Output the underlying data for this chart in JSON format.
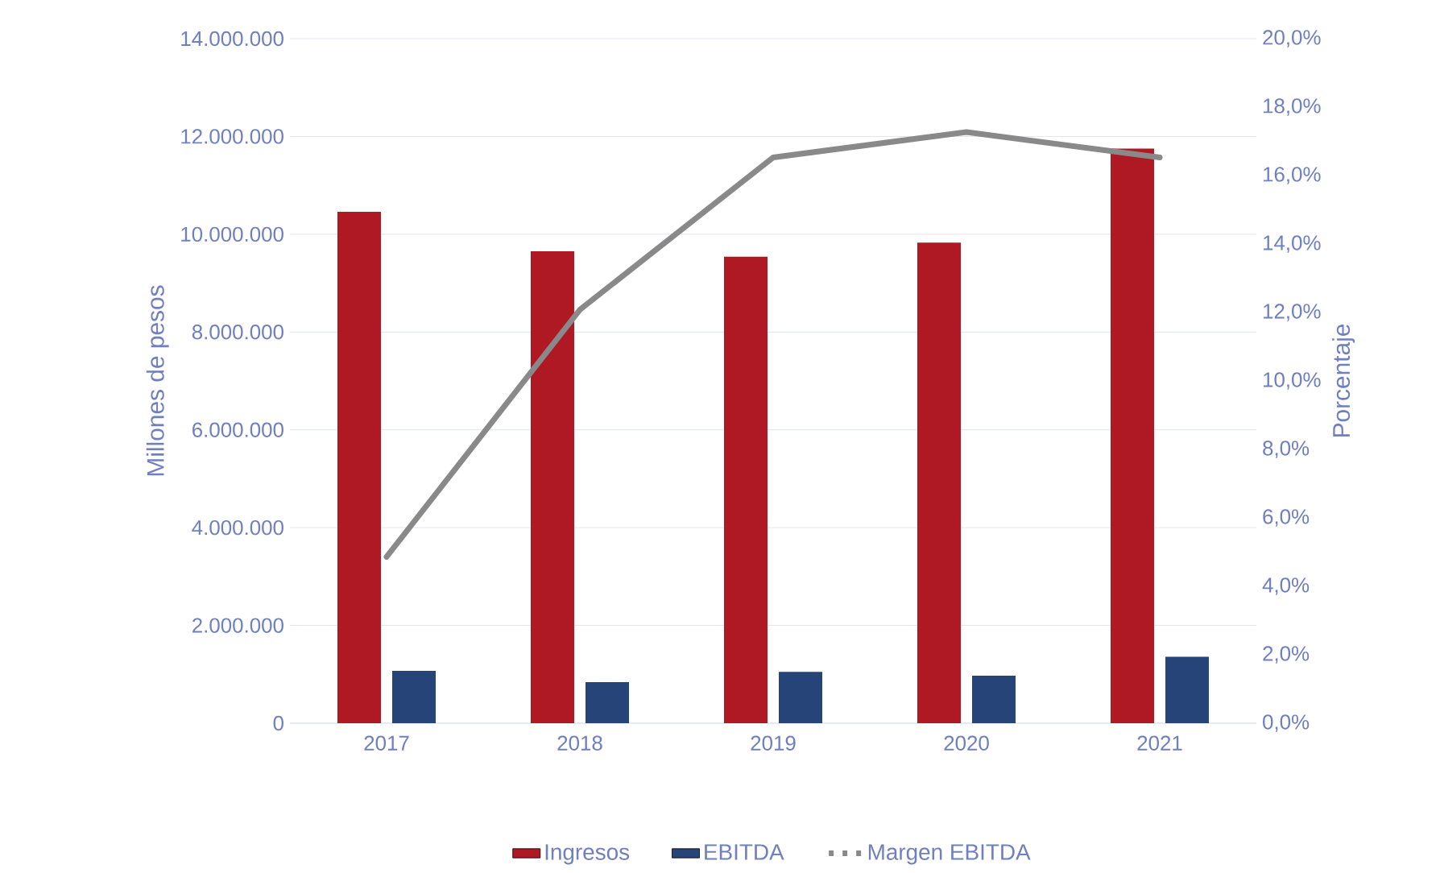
{
  "chart_data": {
    "type": "bar",
    "categories": [
      "2017",
      "2018",
      "2019",
      "2020",
      "2021"
    ],
    "series": [
      {
        "name": "Ingresos",
        "color": "#ae1923",
        "values": [
          10460000,
          9650000,
          9540000,
          9830000,
          11750000
        ]
      },
      {
        "name": "EBITDA",
        "color": "#264478",
        "values": [
          1070000,
          840000,
          1050000,
          970000,
          1360000
        ]
      },
      {
        "name": "Margen EBITDA",
        "color": "#898989",
        "type": "line",
        "axis": "y2",
        "values": [
          4.86,
          12.08,
          16.53,
          17.27,
          16.53
        ]
      }
    ],
    "ylabel": "Millones de pesos",
    "y2label": "Porcentaje",
    "ylim": [
      0,
      14000000
    ],
    "yticks": [
      {
        "value": 0,
        "label": "0"
      },
      {
        "value": 2000000,
        "label": "2.000.000"
      },
      {
        "value": 4000000,
        "label": "4.000.000"
      },
      {
        "value": 6000000,
        "label": "6.000.000"
      },
      {
        "value": 8000000,
        "label": "8.000.000"
      },
      {
        "value": 10000000,
        "label": "10.000.000"
      },
      {
        "value": 12000000,
        "label": "12.000.000"
      },
      {
        "value": 14000000,
        "label": "14.000.000"
      }
    ],
    "y2lim": [
      0,
      20
    ],
    "y2ticks": [
      {
        "value": 0,
        "label": "0,0%"
      },
      {
        "value": 2,
        "label": "2,0%"
      },
      {
        "value": 4,
        "label": "4,0%"
      },
      {
        "value": 6,
        "label": "6,0%"
      },
      {
        "value": 8,
        "label": "8,0%"
      },
      {
        "value": 10,
        "label": "10,0%"
      },
      {
        "value": 12,
        "label": "12,0%"
      },
      {
        "value": 14,
        "label": "14,0%"
      },
      {
        "value": 16,
        "label": "16,0%"
      },
      {
        "value": 18,
        "label": "18,0%"
      },
      {
        "value": 20,
        "label": "20,0%"
      }
    ],
    "grid": "y",
    "legend": "bottom",
    "line_style": "solid"
  }
}
